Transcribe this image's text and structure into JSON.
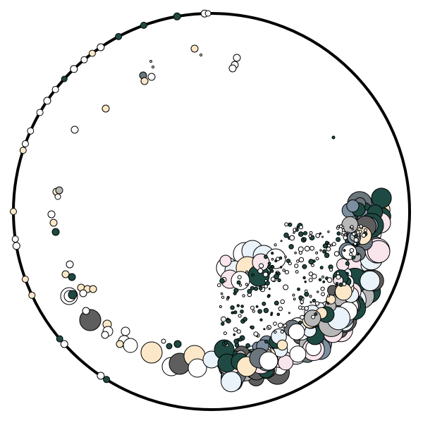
{
  "palette": {
    "cream": "#FCE8C8",
    "white": "#FFFFFF",
    "ice": "#EAF3FA",
    "blush": "#F8E6EC",
    "teal_dark": "#1F4A44",
    "slate": "#6B757C",
    "charcoal": "#5E5E5E",
    "gray": "#B8B8B8",
    "blue_gray": "#7C8FA0",
    "outline": "#000000"
  },
  "description_free": true
}
